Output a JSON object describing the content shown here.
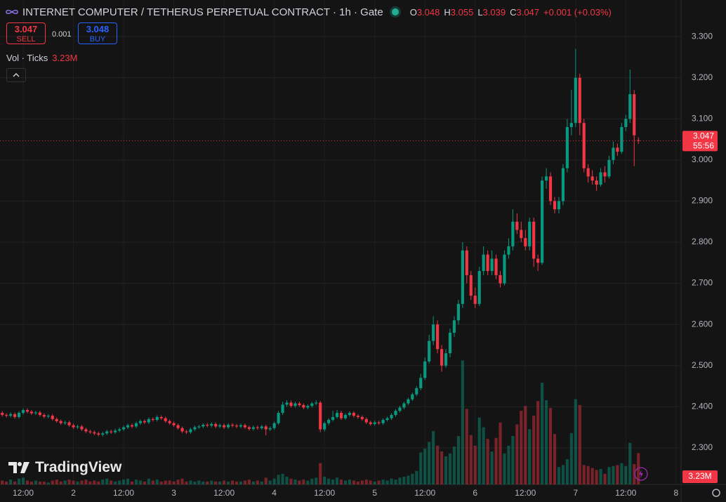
{
  "header": {
    "symbol": "INTERNET COMPUTER / TETHERUS PERPETUAL CONTRACT · 1h · Gate",
    "ohlc": [
      {
        "key": "O",
        "value": "3.048"
      },
      {
        "key": "H",
        "value": "3.055"
      },
      {
        "key": "L",
        "value": "3.039"
      },
      {
        "key": "C",
        "value": "3.047"
      }
    ],
    "change": "+0.001 (+0.03%)"
  },
  "trade": {
    "sell_price": "3.047",
    "sell_label": "SELL",
    "spread": "0.001",
    "buy_price": "3.048",
    "buy_label": "BUY"
  },
  "indicator": {
    "name": "Vol · Ticks"
  },
  "branding": "TradingView",
  "chart_data": {
    "type": "candlestick",
    "up_color": "#089981",
    "down_color": "#f23645",
    "grid": true,
    "x": [
      7,
      8,
      9,
      10,
      11,
      12,
      13,
      14,
      15,
      16,
      17,
      18,
      19,
      20,
      21,
      22,
      23,
      24,
      25,
      26,
      27,
      28,
      29,
      30,
      31,
      32,
      33,
      34,
      35,
      36,
      37,
      38,
      39,
      40,
      41,
      42,
      43,
      44,
      45,
      46,
      47,
      48,
      49,
      50,
      51,
      52,
      53,
      54,
      55,
      56,
      57,
      58,
      59,
      60,
      61,
      62,
      63,
      64,
      65,
      66,
      67,
      68,
      69,
      70,
      71,
      72,
      73,
      74,
      75,
      76,
      77,
      78,
      79,
      80,
      81,
      82,
      83,
      84,
      85,
      86,
      87,
      88,
      89,
      90,
      91,
      92,
      93,
      94,
      95,
      96,
      97,
      98,
      99,
      100,
      101,
      102,
      103,
      104,
      105,
      106,
      107,
      108,
      109,
      110,
      111,
      112,
      113,
      114,
      115,
      116,
      117,
      118,
      119,
      120,
      121,
      122,
      123,
      124,
      125,
      126,
      127,
      128,
      129,
      130,
      131,
      132,
      133,
      134,
      135,
      136,
      137,
      138,
      139,
      140,
      141,
      142,
      143,
      144,
      145,
      146,
      147,
      148,
      149,
      150,
      151,
      152,
      153,
      154,
      155,
      156,
      157,
      158,
      159
    ],
    "open": [
      2.385,
      2.38,
      2.378,
      2.382,
      2.375,
      2.385,
      2.392,
      2.388,
      2.384,
      2.386,
      2.38,
      2.376,
      2.378,
      2.37,
      2.365,
      2.36,
      2.362,
      2.355,
      2.35,
      2.352,
      2.345,
      2.34,
      2.338,
      2.335,
      2.332,
      2.335,
      2.34,
      2.338,
      2.342,
      2.345,
      2.35,
      2.355,
      2.352,
      2.36,
      2.365,
      2.362,
      2.37,
      2.368,
      2.375,
      2.372,
      2.365,
      2.36,
      2.355,
      2.348,
      2.34,
      2.338,
      2.345,
      2.35,
      2.352,
      2.356,
      2.354,
      2.358,
      2.352,
      2.355,
      2.35,
      2.356,
      2.354,
      2.352,
      2.355,
      2.35,
      2.346,
      2.35,
      2.348,
      2.352,
      2.345,
      2.348,
      2.36,
      2.385,
      2.405,
      2.41,
      2.402,
      2.408,
      2.404,
      2.398,
      2.402,
      2.408,
      2.41,
      2.345,
      2.36,
      2.368,
      2.375,
      2.385,
      2.372,
      2.38,
      2.385,
      2.378,
      2.375,
      2.37,
      2.362,
      2.358,
      2.362,
      2.36,
      2.368,
      2.372,
      2.38,
      2.39,
      2.398,
      2.408,
      2.418,
      2.43,
      2.445,
      2.47,
      2.51,
      2.56,
      2.6,
      2.54,
      2.5,
      2.53,
      2.58,
      2.61,
      2.65,
      2.78,
      2.72,
      2.67,
      2.65,
      2.73,
      2.77,
      2.73,
      2.76,
      2.72,
      2.7,
      2.77,
      2.79,
      2.85,
      2.83,
      2.81,
      2.79,
      2.85,
      2.76,
      2.75,
      2.95,
      2.96,
      2.9,
      2.88,
      2.9,
      2.98,
      3.08,
      3.09,
      3.2,
      3.09,
      2.98,
      2.96,
      2.95,
      2.94,
      2.97,
      2.96,
      3.0,
      3.03,
      3.02,
      3.08,
      3.1,
      3.16,
      3.048
    ],
    "high": [
      2.389,
      2.384,
      2.386,
      2.386,
      2.389,
      2.396,
      2.396,
      2.392,
      2.39,
      2.39,
      2.384,
      2.382,
      2.382,
      2.374,
      2.369,
      2.366,
      2.366,
      2.359,
      2.356,
      2.356,
      2.349,
      2.344,
      2.342,
      2.339,
      2.339,
      2.344,
      2.344,
      2.346,
      2.349,
      2.354,
      2.359,
      2.359,
      2.364,
      2.369,
      2.369,
      2.374,
      2.374,
      2.379,
      2.379,
      2.376,
      2.369,
      2.364,
      2.359,
      2.352,
      2.344,
      2.349,
      2.354,
      2.356,
      2.36,
      2.36,
      2.362,
      2.362,
      2.359,
      2.359,
      2.36,
      2.36,
      2.358,
      2.359,
      2.359,
      2.354,
      2.354,
      2.354,
      2.356,
      2.356,
      2.352,
      2.364,
      2.39,
      2.412,
      2.416,
      2.415,
      2.412,
      2.412,
      2.408,
      2.406,
      2.412,
      2.416,
      2.414,
      2.364,
      2.372,
      2.39,
      2.392,
      2.39,
      2.384,
      2.389,
      2.389,
      2.382,
      2.379,
      2.374,
      2.366,
      2.366,
      2.366,
      2.372,
      2.376,
      2.384,
      2.394,
      2.402,
      2.412,
      2.422,
      2.434,
      2.45,
      2.48,
      2.52,
      2.575,
      2.62,
      2.61,
      2.55,
      2.54,
      2.59,
      2.62,
      2.66,
      2.8,
      2.79,
      2.73,
      2.69,
      2.74,
      2.79,
      2.78,
      2.78,
      2.77,
      2.73,
      2.78,
      2.81,
      2.88,
      2.87,
      2.85,
      2.83,
      2.86,
      2.86,
      2.77,
      2.96,
      2.98,
      2.97,
      2.91,
      2.91,
      2.99,
      3.1,
      3.17,
      3.27,
      3.21,
      3.1,
      2.99,
      2.975,
      2.96,
      2.98,
      2.985,
      3.01,
      3.045,
      3.04,
      3.09,
      3.11,
      3.22,
      3.17,
      3.055
    ],
    "low": [
      2.376,
      2.374,
      2.374,
      2.371,
      2.371,
      2.381,
      2.384,
      2.38,
      2.38,
      2.376,
      2.372,
      2.372,
      2.366,
      2.361,
      2.356,
      2.356,
      2.351,
      2.346,
      2.346,
      2.341,
      2.336,
      2.334,
      2.331,
      2.328,
      2.328,
      2.331,
      2.334,
      2.334,
      2.338,
      2.341,
      2.346,
      2.348,
      2.348,
      2.356,
      2.358,
      2.358,
      2.364,
      2.364,
      2.368,
      2.361,
      2.356,
      2.351,
      2.344,
      2.336,
      2.334,
      2.334,
      2.341,
      2.346,
      2.348,
      2.35,
      2.35,
      2.348,
      2.348,
      2.346,
      2.346,
      2.35,
      2.348,
      2.348,
      2.346,
      2.342,
      2.342,
      2.344,
      2.344,
      2.33,
      2.341,
      2.344,
      2.356,
      2.38,
      2.4,
      2.398,
      2.398,
      2.4,
      2.394,
      2.394,
      2.398,
      2.404,
      2.338,
      2.34,
      2.355,
      2.364,
      2.371,
      2.368,
      2.368,
      2.376,
      2.374,
      2.371,
      2.366,
      2.358,
      2.354,
      2.354,
      2.356,
      2.356,
      2.364,
      2.368,
      2.376,
      2.386,
      2.394,
      2.404,
      2.414,
      2.426,
      2.44,
      2.465,
      2.505,
      2.55,
      2.53,
      2.485,
      2.495,
      2.52,
      2.57,
      2.6,
      2.64,
      2.7,
      2.66,
      2.64,
      2.645,
      2.72,
      2.72,
      2.72,
      2.71,
      2.69,
      2.695,
      2.76,
      2.78,
      2.82,
      2.8,
      2.78,
      2.78,
      2.74,
      2.73,
      2.745,
      2.93,
      2.89,
      2.87,
      2.87,
      2.89,
      2.97,
      3.06,
      3.08,
      3.06,
      2.97,
      2.945,
      2.94,
      2.925,
      2.935,
      2.945,
      2.955,
      2.99,
      3.01,
      3.015,
      3.07,
      3.09,
      2.985,
      3.039
    ],
    "close": [
      2.38,
      2.378,
      2.382,
      2.375,
      2.385,
      2.392,
      2.388,
      2.384,
      2.386,
      2.38,
      2.376,
      2.378,
      2.37,
      2.365,
      2.36,
      2.362,
      2.355,
      2.35,
      2.352,
      2.345,
      2.34,
      2.338,
      2.335,
      2.332,
      2.335,
      2.34,
      2.338,
      2.342,
      2.345,
      2.35,
      2.355,
      2.352,
      2.36,
      2.365,
      2.362,
      2.37,
      2.368,
      2.375,
      2.372,
      2.365,
      2.36,
      2.355,
      2.348,
      2.34,
      2.338,
      2.345,
      2.35,
      2.352,
      2.356,
      2.354,
      2.358,
      2.352,
      2.355,
      2.35,
      2.356,
      2.354,
      2.352,
      2.355,
      2.35,
      2.346,
      2.35,
      2.348,
      2.352,
      2.345,
      2.348,
      2.36,
      2.385,
      2.405,
      2.41,
      2.402,
      2.408,
      2.404,
      2.398,
      2.402,
      2.408,
      2.41,
      2.345,
      2.36,
      2.368,
      2.375,
      2.385,
      2.372,
      2.38,
      2.385,
      2.378,
      2.375,
      2.37,
      2.362,
      2.358,
      2.362,
      2.36,
      2.368,
      2.372,
      2.38,
      2.39,
      2.398,
      2.408,
      2.418,
      2.43,
      2.445,
      2.47,
      2.51,
      2.56,
      2.6,
      2.54,
      2.5,
      2.53,
      2.58,
      2.61,
      2.65,
      2.78,
      2.72,
      2.67,
      2.65,
      2.73,
      2.77,
      2.73,
      2.76,
      2.72,
      2.7,
      2.77,
      2.79,
      2.85,
      2.83,
      2.81,
      2.79,
      2.85,
      2.76,
      2.75,
      2.95,
      2.96,
      2.9,
      2.88,
      2.9,
      2.98,
      3.08,
      3.09,
      3.2,
      3.09,
      2.98,
      2.96,
      2.95,
      2.94,
      2.97,
      2.96,
      3.0,
      3.03,
      3.02,
      3.08,
      3.1,
      3.16,
      3.06,
      3.047
    ],
    "volume": [
      0.4,
      0.3,
      0.5,
      0.3,
      0.6,
      0.7,
      0.4,
      0.3,
      0.4,
      0.3,
      0.3,
      0.2,
      0.4,
      0.5,
      0.3,
      0.4,
      0.5,
      0.4,
      0.3,
      0.4,
      0.5,
      0.3,
      0.4,
      0.3,
      0.5,
      0.6,
      0.4,
      0.3,
      0.4,
      0.5,
      0.6,
      0.3,
      0.5,
      0.4,
      0.3,
      0.6,
      0.4,
      0.5,
      0.3,
      0.4,
      0.4,
      0.3,
      0.5,
      0.6,
      0.3,
      0.4,
      0.3,
      0.4,
      0.3,
      0.3,
      0.4,
      0.3,
      0.3,
      0.4,
      0.3,
      0.4,
      0.3,
      0.3,
      0.4,
      0.5,
      0.3,
      0.4,
      0.3,
      0.7,
      0.4,
      0.6,
      1.0,
      1.1,
      0.8,
      0.6,
      0.5,
      0.4,
      0.5,
      0.4,
      0.6,
      0.7,
      2.2,
      0.8,
      0.6,
      0.5,
      0.7,
      0.5,
      0.4,
      0.5,
      0.4,
      0.3,
      0.4,
      0.5,
      0.4,
      0.3,
      0.4,
      0.5,
      0.4,
      0.6,
      0.5,
      0.7,
      0.8,
      0.9,
      1.1,
      1.4,
      3.3,
      3.7,
      4.4,
      5.5,
      4.0,
      3.4,
      2.9,
      3.2,
      3.9,
      5.0,
      12.8,
      7.8,
      5.1,
      4.0,
      6.9,
      5.9,
      4.7,
      3.4,
      4.8,
      6.4,
      3.2,
      4.0,
      5.0,
      6.2,
      7.6,
      8.1,
      5.7,
      7.1,
      8.6,
      10.5,
      8.7,
      7.9,
      5.2,
      1.8,
      2.0,
      2.6,
      5.3,
      8.8,
      8.2,
      2.0,
      1.9,
      1.7,
      1.5,
      1.6,
      1.1,
      1.8,
      1.9,
      2.0,
      2.2,
      1.9,
      4.3,
      2.1,
      3.23
    ],
    "volume_label": "3.23M",
    "volume_lim": [
      0,
      50
    ],
    "current_price": 3.047,
    "countdown": "55:56",
    "xlim": [
      6.46,
      169.2
    ],
    "xticks": [
      {
        "value": 12,
        "label": "12:00"
      },
      {
        "value": 24,
        "label": "2"
      },
      {
        "value": 36,
        "label": "12:00"
      },
      {
        "value": 48,
        "label": "3"
      },
      {
        "value": 60,
        "label": "12:00"
      },
      {
        "value": 72,
        "label": "4"
      },
      {
        "value": 84,
        "label": "12:00"
      },
      {
        "value": 96,
        "label": "5"
      },
      {
        "value": 108,
        "label": "12:00"
      },
      {
        "value": 120,
        "label": "6"
      },
      {
        "value": 132,
        "label": "12:00"
      },
      {
        "value": 144,
        "label": "7"
      },
      {
        "value": 156,
        "label": "12:00"
      },
      {
        "value": 168,
        "label": "8"
      }
    ],
    "ylim": [
      2.211,
      3.389
    ],
    "yticks": [
      {
        "value": 2.3,
        "label": "2.300"
      },
      {
        "value": 2.4,
        "label": "2.400"
      },
      {
        "value": 2.5,
        "label": "2.500"
      },
      {
        "value": 2.6,
        "label": "2.600"
      },
      {
        "value": 2.7,
        "label": "2.700"
      },
      {
        "value": 2.8,
        "label": "2.800"
      },
      {
        "value": 2.9,
        "label": "2.900"
      },
      {
        "value": 3.0,
        "label": "3.000"
      },
      {
        "value": 3.1,
        "label": "3.100"
      },
      {
        "value": 3.2,
        "label": "3.200"
      },
      {
        "value": 3.3,
        "label": "3.300"
      }
    ]
  }
}
